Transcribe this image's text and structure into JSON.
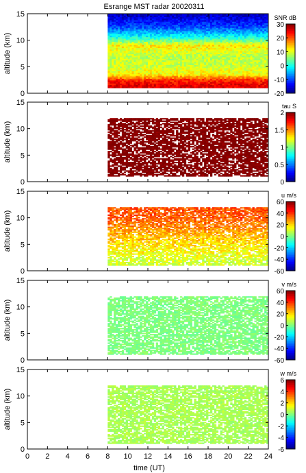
{
  "title": "Esrange MST radar 20020311",
  "xlabel": "time (UT)",
  "x_ticks": [
    0,
    2,
    4,
    6,
    8,
    10,
    12,
    14,
    16,
    18,
    20,
    22,
    24
  ],
  "chart_data": [
    {
      "type": "heatmap",
      "parameter": "SNR",
      "colorbar_label": "SNR dB",
      "colorbar_ticks": [
        30,
        20,
        10,
        0,
        -10,
        -20
      ],
      "clim": [
        -20,
        30
      ],
      "ylabel": "altitude (km)",
      "y_ticks": [
        0,
        5,
        10,
        15
      ],
      "xlim": [
        0,
        24
      ],
      "ylim": [
        0,
        15
      ],
      "data_time_range": [
        8,
        24
      ],
      "data_altitude_range": [
        1,
        15
      ],
      "profile": [
        {
          "altitude": 1.5,
          "value": 25
        },
        {
          "altitude": 2.5,
          "value": 22
        },
        {
          "altitude": 3.5,
          "value": 12
        },
        {
          "altitude": 5.0,
          "value": 9
        },
        {
          "altitude": 7.0,
          "value": 8
        },
        {
          "altitude": 9.0,
          "value": 12
        },
        {
          "altitude": 10.5,
          "value": 0
        },
        {
          "altitude": 12.5,
          "value": -10
        },
        {
          "altitude": 14.5,
          "value": -16
        }
      ]
    },
    {
      "type": "heatmap",
      "parameter": "tau",
      "colorbar_label": "tau S",
      "colorbar_ticks": [
        2,
        1.5,
        1,
        0.5,
        0
      ],
      "clim": [
        0,
        2
      ],
      "ylabel": "altitude (km)",
      "y_ticks": [
        0,
        5,
        10,
        15
      ],
      "xlim": [
        0,
        24
      ],
      "ylim": [
        0,
        15
      ],
      "data_time_range": [
        8,
        24
      ],
      "data_altitude_range": [
        1,
        12
      ],
      "typical_value": 2
    },
    {
      "type": "heatmap",
      "parameter": "u",
      "colorbar_label": "u m/s",
      "colorbar_ticks": [
        60,
        40,
        20,
        0,
        -20,
        -40,
        -60
      ],
      "clim": [
        -60,
        60
      ],
      "ylabel": "altitude (km)",
      "y_ticks": [
        0,
        5,
        10,
        15
      ],
      "xlim": [
        0,
        24
      ],
      "ylim": [
        0,
        15
      ],
      "data_time_range": [
        8,
        24
      ],
      "data_altitude_range": [
        1,
        12
      ],
      "profile": [
        {
          "altitude": 2,
          "value": 10
        },
        {
          "altitude": 5,
          "value": 18
        },
        {
          "altitude": 8,
          "value": 28
        },
        {
          "altitude": 10,
          "value": 35
        }
      ]
    },
    {
      "type": "heatmap",
      "parameter": "v",
      "colorbar_label": "v m/s",
      "colorbar_ticks": [
        60,
        40,
        20,
        0,
        -20,
        -40,
        -60
      ],
      "clim": [
        -60,
        60
      ],
      "ylabel": "altitude (km)",
      "y_ticks": [
        0,
        5,
        10,
        15
      ],
      "xlim": [
        0,
        24
      ],
      "ylim": [
        0,
        15
      ],
      "data_time_range": [
        8,
        24
      ],
      "data_altitude_range": [
        1,
        12
      ],
      "typical_value": 0
    },
    {
      "type": "heatmap",
      "parameter": "w",
      "colorbar_label": "w m/s",
      "colorbar_ticks": [
        6,
        4,
        2,
        0,
        -2,
        -4,
        -6
      ],
      "clim": [
        -6,
        6
      ],
      "ylabel": "altitude (km)",
      "y_ticks": [
        0,
        5,
        10,
        15
      ],
      "xlim": [
        0,
        24
      ],
      "ylim": [
        0,
        15
      ],
      "data_time_range": [
        8,
        24
      ],
      "data_altitude_range": [
        1,
        12
      ],
      "typical_value": 0.5
    }
  ]
}
